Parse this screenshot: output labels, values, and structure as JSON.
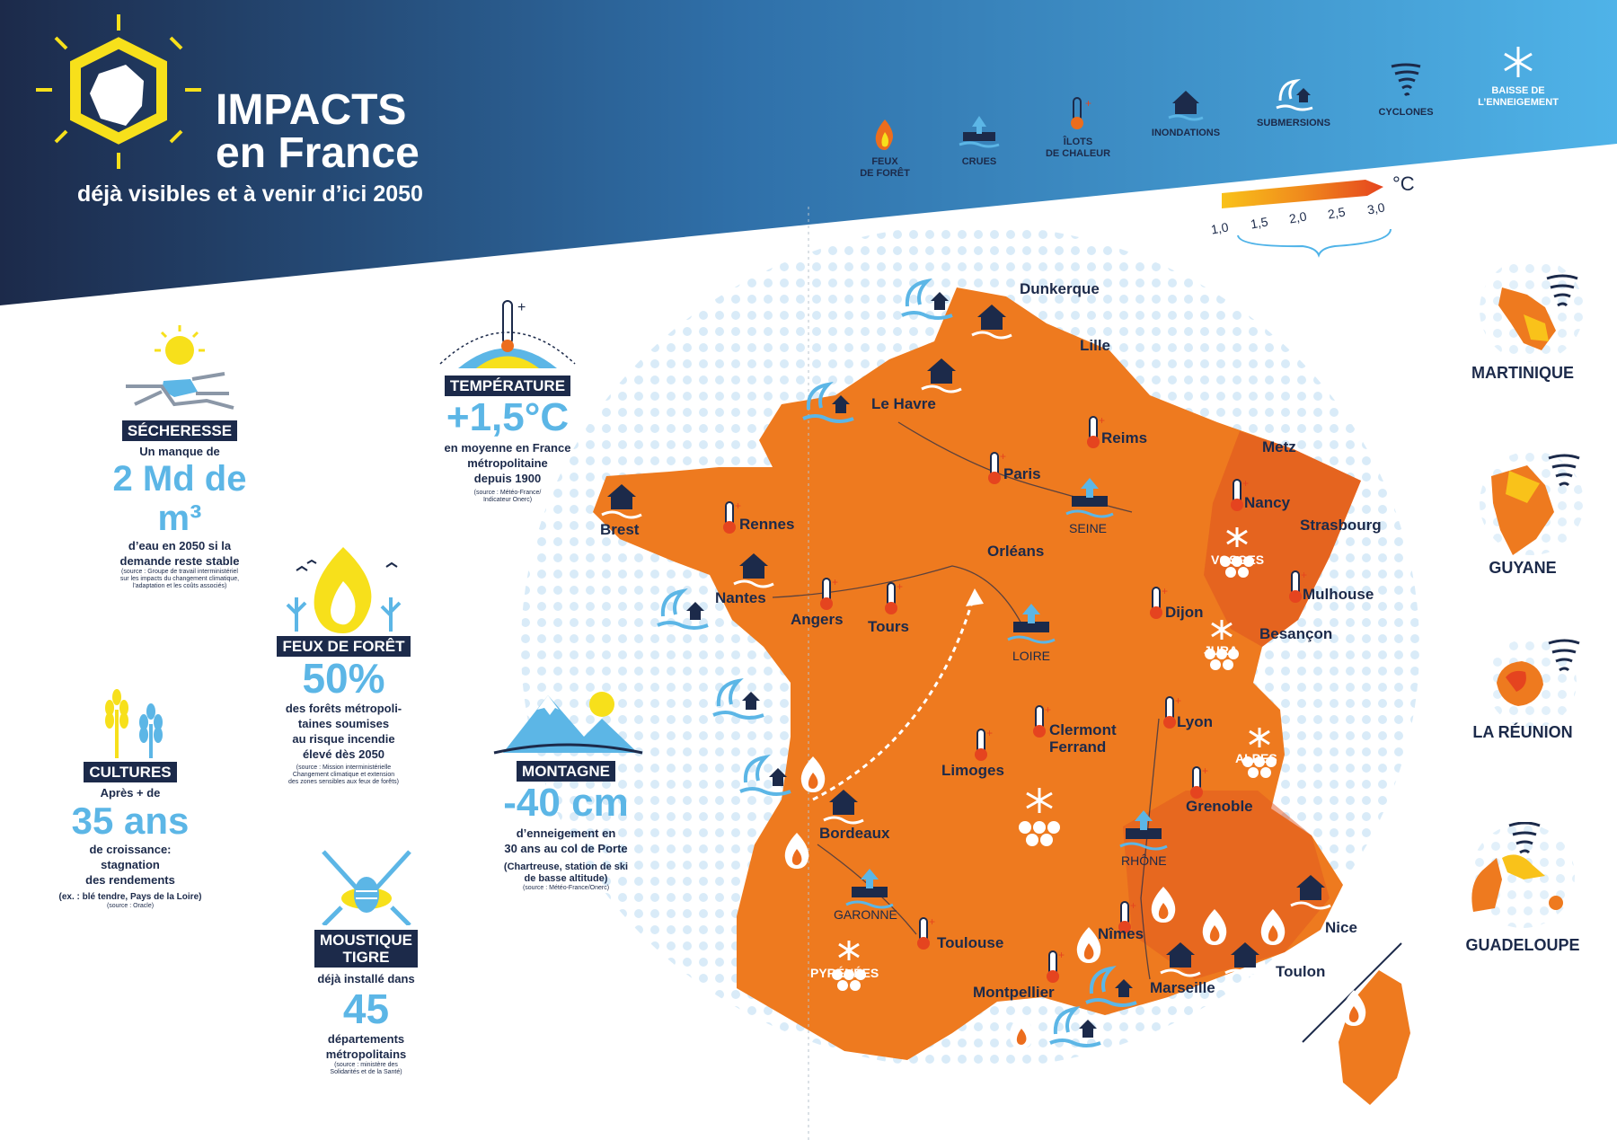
{
  "header": {
    "title_line1": "IMPACTS",
    "title_line2": "en France",
    "subtitle": "déjà visibles et à venir d’ici 2050"
  },
  "legend": [
    {
      "icon": "forest-fire-icon",
      "label": "FEUX\nDE FORÊT"
    },
    {
      "icon": "flood-river-icon",
      "label": "CRUES"
    },
    {
      "icon": "heat-island-icon",
      "label": "ÎLOTS\nDE CHALEUR"
    },
    {
      "icon": "house-flood-icon",
      "label": "INONDATIONS"
    },
    {
      "icon": "wave-submersion-icon",
      "label": "SUBMERSIONS"
    },
    {
      "icon": "cyclone-icon",
      "label": "CYCLONES"
    },
    {
      "icon": "snowflake-icon",
      "label": "BAISSE DE\nL’ENNEIGEMENT"
    }
  ],
  "temperature_scale": {
    "unit": "°C",
    "ticks": [
      "1,0",
      "1,5",
      "2,0",
      "2,5",
      "3,0"
    ],
    "colors": [
      "#f9c21a",
      "#f5a316",
      "#f08a1c",
      "#ec6d1d",
      "#e5441f"
    ]
  },
  "impacts": {
    "secheresse": {
      "badge": "SÉCHERESSE",
      "line1": "Un manque de",
      "big": "2 Md de m³",
      "desc": "d’eau en 2050 si la\ndemande reste stable",
      "source": "(source : Groupe de travail interministériel\nsur les impacts du changement climatique,\nl’adaptation et les coûts associés)"
    },
    "temperature": {
      "badge": "TEMPÉRATURE",
      "big": "+1,5°C",
      "desc": "en moyenne en France\nmétropolitaine\ndepuis 1900",
      "source": "(source : Météo-France/\nIndicateur Onerc)"
    },
    "feux": {
      "badge": "FEUX DE FORÊT",
      "big": "50%",
      "desc": "des forêts métropoli-\ntaines soumises\nau risque incendie\nélevé dès 2050",
      "source": "(source : Mission interministérielle\nChangement climatique et extension\ndes zones sensibles aux feux de forêts)"
    },
    "cultures": {
      "badge": "CULTURES",
      "line1": "Après + de",
      "big": "35 ans",
      "desc": "de croissance:\nstagnation\ndes rendements",
      "note": "(ex. : blé tendre, Pays de la Loire)",
      "source": "(source : Oracle)"
    },
    "montagne": {
      "badge": "MONTAGNE",
      "big": "-40 cm",
      "desc": "d’enneigement en\n30 ans au col de Porte",
      "note": "(Chartreuse, station de ski\nde basse altitude)",
      "source": "(source : Météo-France/Onerc)"
    },
    "moustique": {
      "badge": "MOUSTIQUE\nTIGRE",
      "line1": "déjà installé dans",
      "big": "45",
      "desc": "départements\nmétropolitains",
      "source": "(source : ministère des\nSolidarités et de la Santé)"
    }
  },
  "map": {
    "cities": [
      "Dunkerque",
      "Lille",
      "Le Havre",
      "Reims",
      "Metz",
      "Paris",
      "Nancy",
      "Strasbourg",
      "Brest",
      "Rennes",
      "Orléans",
      "Nantes",
      "Angers",
      "Tours",
      "Dijon",
      "Mulhouse",
      "Besançon",
      "Clermont\nFerrand",
      "Lyon",
      "Limoges",
      "Grenoble",
      "Bordeaux",
      "Toulouse",
      "Nîmes",
      "Nice",
      "Marseille",
      "Toulon",
      "Montpellier"
    ],
    "rivers": [
      "SEINE",
      "LOIRE",
      "RHÔNE",
      "GARONNE"
    ],
    "mountains": [
      "VOSGES",
      "JURA",
      "ALPES",
      "PYRÉNÉES"
    ]
  },
  "overseas": [
    "MARTINIQUE",
    "GUYANE",
    "LA RÉUNION",
    "GUADELOUPE"
  ],
  "colors": {
    "navy": "#1c2a4a",
    "light_blue": "#5cb6e6",
    "orange": "#ec6d1d",
    "yellow": "#f7e01b"
  }
}
